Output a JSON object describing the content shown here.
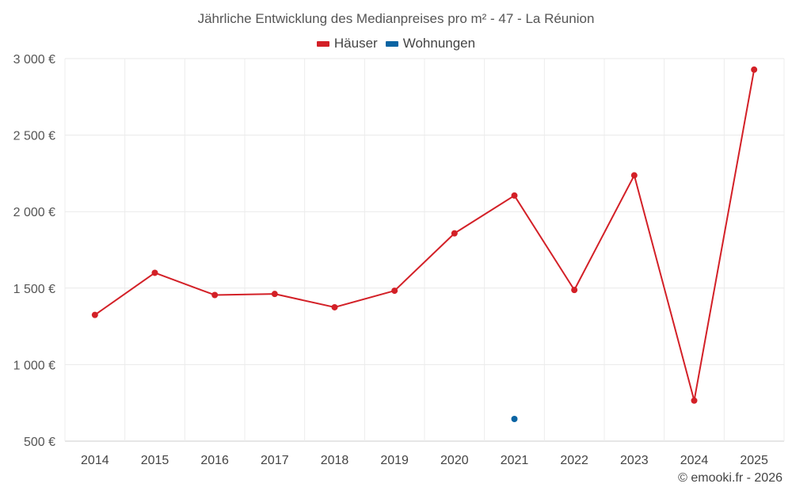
{
  "chart_data": {
    "type": "line",
    "title": "Jährliche Entwicklung des Medianpreises pro m² - 47 - La Réunion",
    "categories": [
      "2014",
      "2015",
      "2016",
      "2017",
      "2018",
      "2019",
      "2020",
      "2021",
      "2022",
      "2023",
      "2024",
      "2025"
    ],
    "yticks": [
      "500 €",
      "1 000 €",
      "1 500 €",
      "2 000 €",
      "2 500 €",
      "3 000 €"
    ],
    "ytick_values": [
      500,
      1000,
      1500,
      2000,
      2500,
      3000
    ],
    "ylim": [
      500,
      3000
    ],
    "grid": true,
    "legend_position": "top-center",
    "series": [
      {
        "name": "Häuser",
        "color": "#d32027",
        "values": [
          1325,
          1600,
          1455,
          1462,
          1375,
          1483,
          1858,
          2105,
          1488,
          2237,
          765,
          2928
        ]
      },
      {
        "name": "Wohnungen",
        "color": "#0b64a3",
        "values": [
          null,
          null,
          null,
          null,
          null,
          null,
          null,
          645,
          null,
          null,
          null,
          null
        ]
      }
    ]
  },
  "credit": "© emooki.fr - 2026"
}
